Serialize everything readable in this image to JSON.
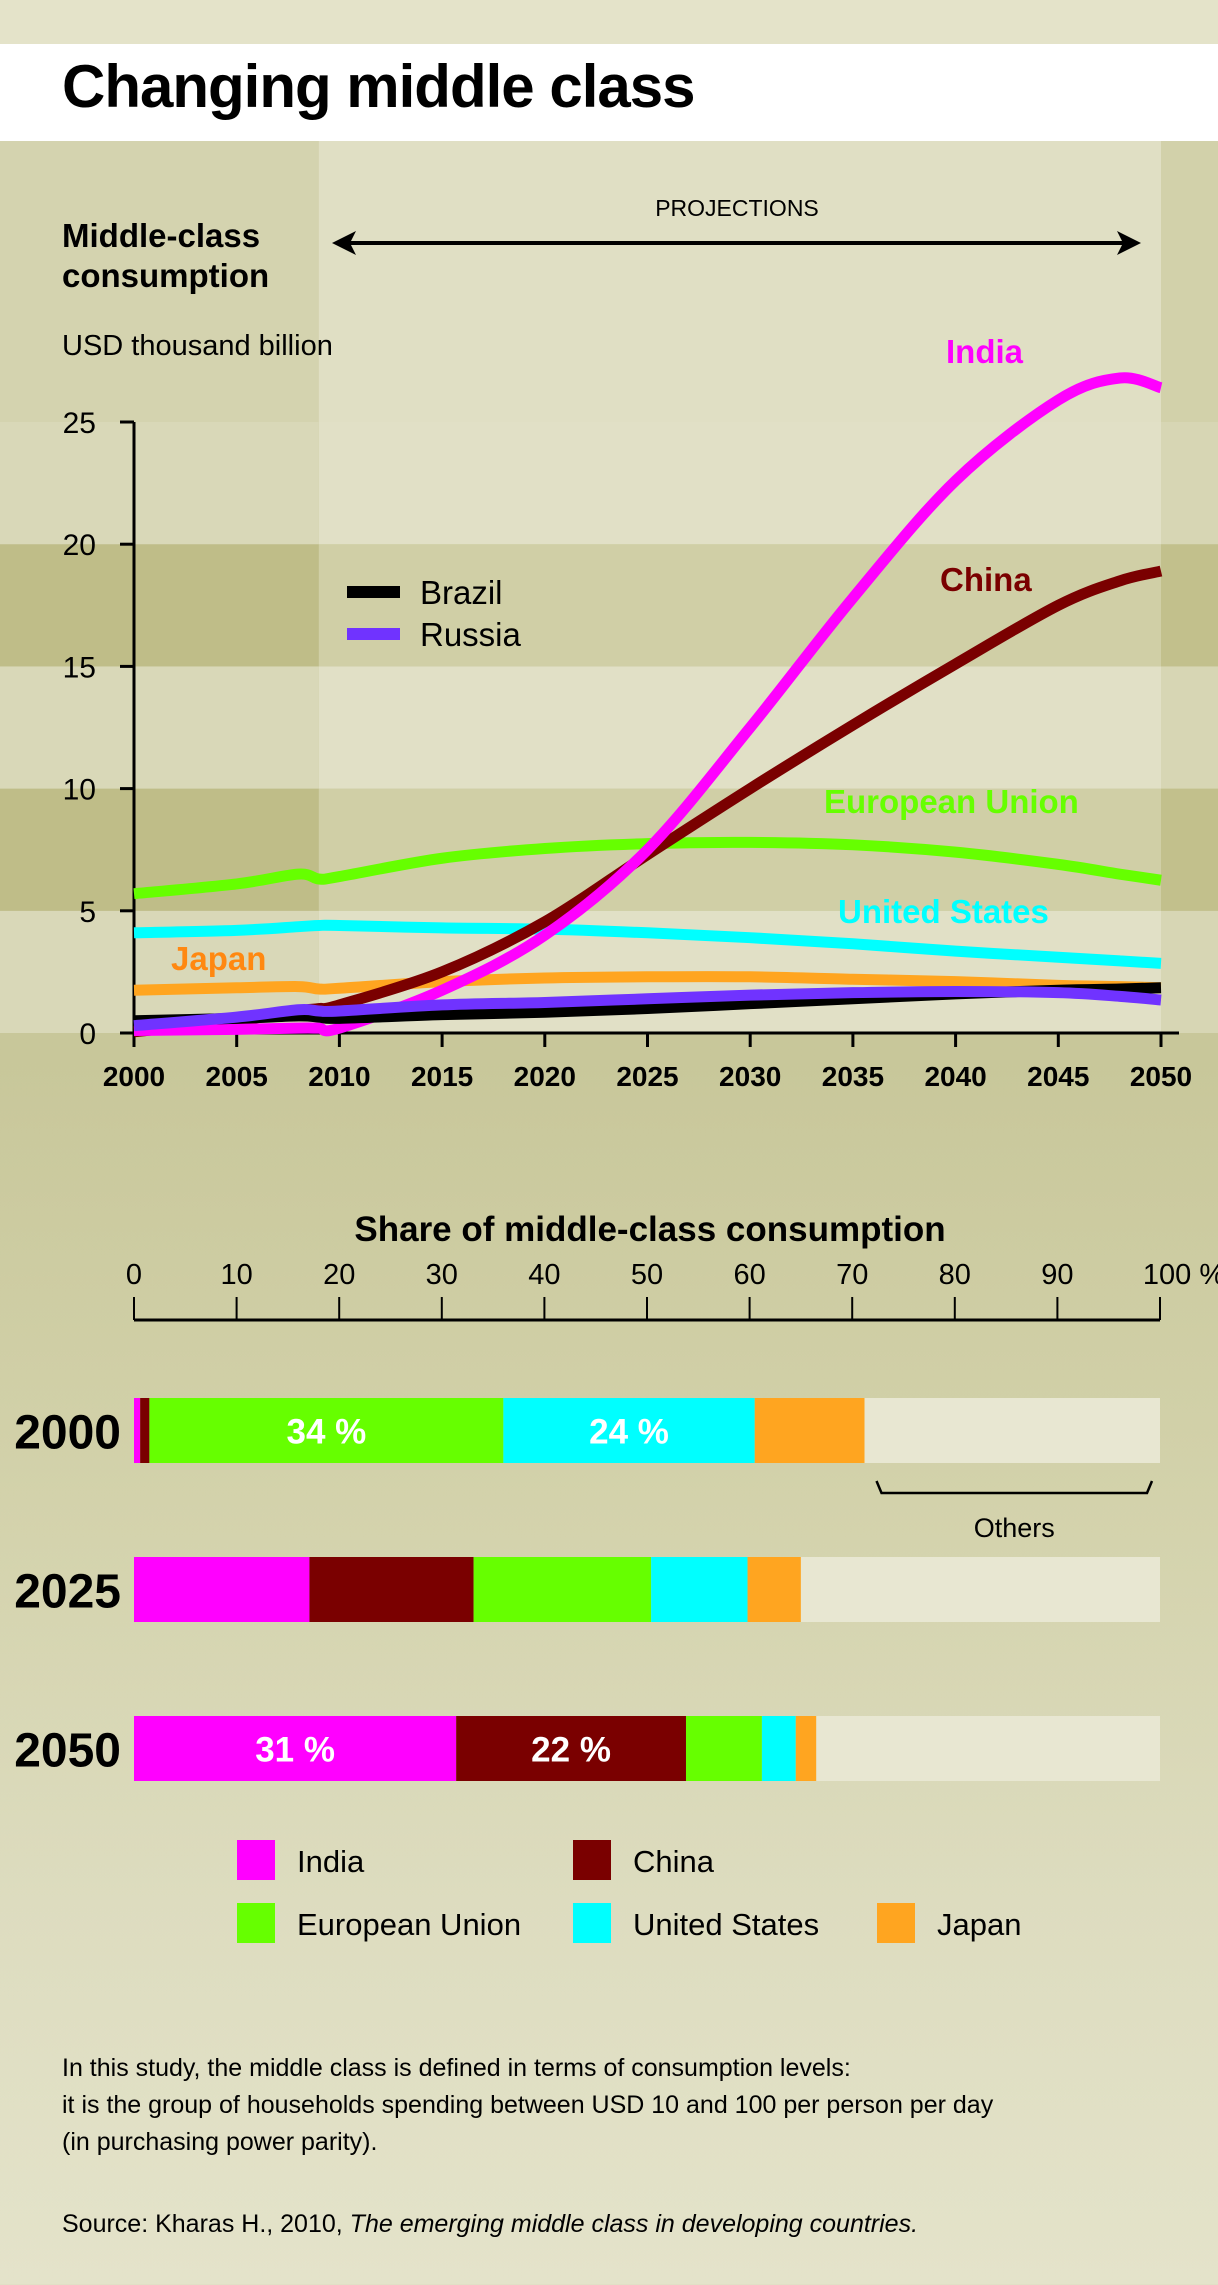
{
  "page": {
    "title": "Changing middle class"
  },
  "line_chart": {
    "title_line1": "Middle-class",
    "title_line2": "consumption",
    "unit": "USD thousand billion",
    "projections_label": "PROJECTIONS",
    "legend": [
      {
        "name": "Brazil",
        "color": "#000000"
      },
      {
        "name": "Russia",
        "color": "#7033ff"
      }
    ],
    "direct_labels": [
      {
        "name": "India",
        "color": "#ff00ff"
      },
      {
        "name": "China",
        "color": "#7a0000"
      },
      {
        "name": "European Union",
        "color": "#66ff00"
      },
      {
        "name": "United States",
        "color": "#00ffff"
      },
      {
        "name": "Japan",
        "color": "#ff8811"
      }
    ]
  },
  "bar_chart": {
    "title": "Share of middle-class consumption",
    "others_label": "Others",
    "legend": [
      {
        "name": "India",
        "color": "#ff00ff"
      },
      {
        "name": "China",
        "color": "#7a0000"
      },
      {
        "name": "European Union",
        "color": "#66ff00"
      },
      {
        "name": "United States",
        "color": "#00ffff"
      },
      {
        "name": "Japan",
        "color": "#ffa520"
      }
    ]
  },
  "footnote": {
    "lines": [
      "In this study, the middle class is defined in terms of consumption levels:",
      "it is the group of households spending between USD 10 and 100 per person per day",
      "(in purchasing power parity)."
    ],
    "source_prefix": "Source: Kharas H., 2010, ",
    "source_title": "The emerging middle class in developing countries."
  },
  "chart_data": [
    {
      "type": "line",
      "title": "Middle-class consumption",
      "ylabel": "USD thousand billion",
      "xlabel": "",
      "xlim": [
        2000,
        2050
      ],
      "ylim": [
        0,
        25
      ],
      "x_ticks": [
        2000,
        2005,
        2010,
        2015,
        2020,
        2025,
        2030,
        2035,
        2040,
        2045,
        2050
      ],
      "y_ticks": [
        0,
        5,
        10,
        15,
        20,
        25
      ],
      "grid": "alternating horizontal bands every 5 units",
      "projection_range": [
        2009,
        2050
      ],
      "legend_position": "upper-left (Brazil, Russia); other series labeled directly",
      "x": [
        2000,
        2005,
        2008,
        2009,
        2010,
        2015,
        2020,
        2025,
        2030,
        2035,
        2040,
        2045,
        2048,
        2050
      ],
      "series": [
        {
          "name": "India",
          "color": "#ff00ff",
          "values": [
            0.1,
            0.15,
            0.2,
            0.2,
            0.2,
            1.75,
            4.0,
            7.5,
            12.5,
            17.8,
            22.6,
            25.9,
            26.8,
            26.4
          ]
        },
        {
          "name": "China",
          "color": "#7a0000",
          "values": [
            0.05,
            0.5,
            0.9,
            1.0,
            1.15,
            2.5,
            4.55,
            7.3,
            10.0,
            12.6,
            15.1,
            17.5,
            18.5,
            18.9
          ]
        },
        {
          "name": "European Union",
          "color": "#66ff00",
          "values": [
            5.7,
            6.1,
            6.5,
            6.3,
            6.4,
            7.15,
            7.55,
            7.75,
            7.8,
            7.7,
            7.4,
            6.9,
            6.5,
            6.25
          ]
        },
        {
          "name": "United States",
          "color": "#00ffff",
          "values": [
            4.1,
            4.2,
            4.35,
            4.4,
            4.4,
            4.3,
            4.25,
            4.1,
            3.9,
            3.65,
            3.35,
            3.1,
            2.95,
            2.85
          ]
        },
        {
          "name": "Japan",
          "color": "#ffa520",
          "values": [
            1.75,
            1.85,
            1.9,
            1.8,
            1.83,
            2.1,
            2.25,
            2.3,
            2.3,
            2.2,
            2.1,
            1.95,
            1.9,
            1.85
          ]
        },
        {
          "name": "Brazil",
          "color": "#000000",
          "values": [
            0.5,
            0.6,
            0.7,
            0.65,
            0.6,
            0.75,
            0.85,
            1.0,
            1.2,
            1.4,
            1.6,
            1.75,
            1.8,
            1.85
          ]
        },
        {
          "name": "Russia",
          "color": "#7033ff",
          "values": [
            0.3,
            0.65,
            0.95,
            0.9,
            0.9,
            1.15,
            1.25,
            1.4,
            1.55,
            1.65,
            1.7,
            1.65,
            1.5,
            1.35
          ]
        }
      ],
      "annotations": [
        "PROJECTIONS"
      ]
    },
    {
      "type": "bar",
      "orientation": "horizontal-stacked",
      "title": "Share of middle-class consumption",
      "xlabel": "%",
      "xlim": [
        0,
        100
      ],
      "x_ticks": [
        0,
        10,
        20,
        30,
        40,
        50,
        60,
        70,
        80,
        90,
        100
      ],
      "x_tick_suffix_on_last": "%",
      "categories": [
        "2000",
        "2025",
        "2050"
      ],
      "series": [
        {
          "name": "India",
          "color": "#ff00ff",
          "values": [
            0.6,
            17.1,
            31.4
          ]
        },
        {
          "name": "China",
          "color": "#7a0000",
          "values": [
            0.9,
            16.0,
            22.4
          ]
        },
        {
          "name": "European Union",
          "color": "#66ff00",
          "values": [
            34.5,
            17.3,
            7.4
          ]
        },
        {
          "name": "United States",
          "color": "#00ffff",
          "values": [
            24.5,
            9.4,
            3.3
          ]
        },
        {
          "name": "Japan",
          "color": "#ffa520",
          "values": [
            10.7,
            5.2,
            2.0
          ]
        },
        {
          "name": "Others",
          "color": "#e8e7d2",
          "values": [
            28.8,
            35.0,
            33.5
          ]
        }
      ],
      "data_labels": [
        {
          "category": "2000",
          "series": "European Union",
          "text": "34 %"
        },
        {
          "category": "2000",
          "series": "United States",
          "text": "24 %"
        },
        {
          "category": "2050",
          "series": "India",
          "text": "31 %"
        },
        {
          "category": "2050",
          "series": "China",
          "text": "22 %"
        }
      ],
      "bracket_annotation": {
        "category": "2000",
        "series": "Others",
        "text": "Others"
      },
      "legend_position": "bottom"
    }
  ]
}
